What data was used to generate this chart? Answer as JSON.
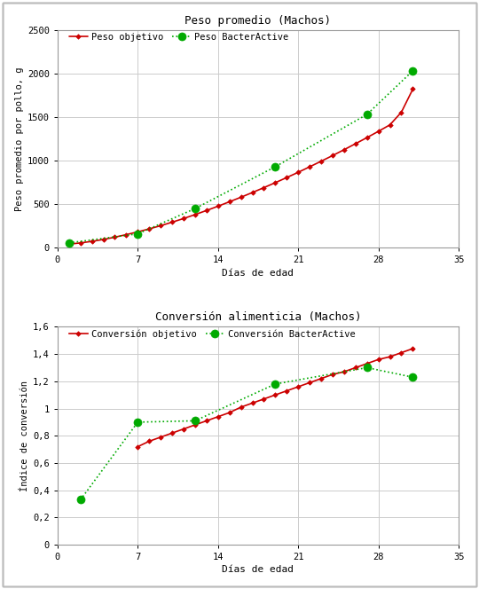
{
  "chart1": {
    "title": "Peso promedio (Machos)",
    "xlabel": "Días de edad",
    "ylabel": "Peso promedio por pollo, g",
    "xlim": [
      0,
      35
    ],
    "ylim": [
      0,
      2500
    ],
    "xticks": [
      0,
      7,
      14,
      21,
      28,
      35
    ],
    "yticks": [
      0,
      500,
      1000,
      1500,
      2000,
      2500
    ],
    "objetivo_x": [
      1,
      2,
      3,
      4,
      5,
      6,
      7,
      8,
      9,
      10,
      11,
      12,
      13,
      14,
      15,
      16,
      17,
      18,
      19,
      20,
      21,
      22,
      23,
      24,
      25,
      26,
      27,
      28,
      29,
      30,
      31
    ],
    "objetivo_y": [
      42,
      56,
      74,
      96,
      122,
      151,
      183,
      217,
      254,
      294,
      336,
      381,
      428,
      477,
      528,
      580,
      634,
      690,
      747,
      806,
      866,
      929,
      993,
      1058,
      1125,
      1194,
      1264,
      1336,
      1410,
      1555,
      1820
    ],
    "bacter_x": [
      1,
      7,
      12,
      19,
      27,
      31
    ],
    "bacter_y": [
      57,
      160,
      450,
      930,
      1530,
      2030
    ],
    "objetivo_color": "#cc0000",
    "bacter_color": "#00aa00",
    "legend_objetivo": "Peso objetivo",
    "legend_bacter": "Peso BacterActive"
  },
  "chart2": {
    "title": "Conversión alimenticia (Machos)",
    "xlabel": "Días de edad",
    "ylabel": "Índice de conversión",
    "xlim": [
      0,
      35
    ],
    "ylim": [
      0,
      1.6
    ],
    "xticks": [
      0,
      7,
      14,
      21,
      28,
      35
    ],
    "yticks": [
      0,
      0.2,
      0.4,
      0.6,
      0.8,
      1.0,
      1.2,
      1.4,
      1.6
    ],
    "objetivo_x": [
      7,
      8,
      9,
      10,
      11,
      12,
      13,
      14,
      15,
      16,
      17,
      18,
      19,
      20,
      21,
      22,
      23,
      24,
      25,
      26,
      27,
      28,
      29,
      30,
      31
    ],
    "objetivo_y": [
      0.72,
      0.76,
      0.79,
      0.82,
      0.85,
      0.88,
      0.91,
      0.94,
      0.97,
      1.01,
      1.04,
      1.07,
      1.1,
      1.13,
      1.16,
      1.19,
      1.22,
      1.25,
      1.27,
      1.3,
      1.33,
      1.36,
      1.38,
      1.41,
      1.44
    ],
    "bacter_x": [
      2,
      7,
      12,
      19,
      27,
      31
    ],
    "bacter_y": [
      0.33,
      0.9,
      0.91,
      1.18,
      1.3,
      1.23
    ],
    "objetivo_color": "#cc0000",
    "bacter_color": "#00aa00",
    "legend_objetivo": "Conversión objetivo",
    "legend_bacter": "Conversión BacterActive"
  },
  "background_color": "#ffffff",
  "grid_color": "#cccccc",
  "font_family": "monospace",
  "outer_border_color": "#aaaaaa"
}
